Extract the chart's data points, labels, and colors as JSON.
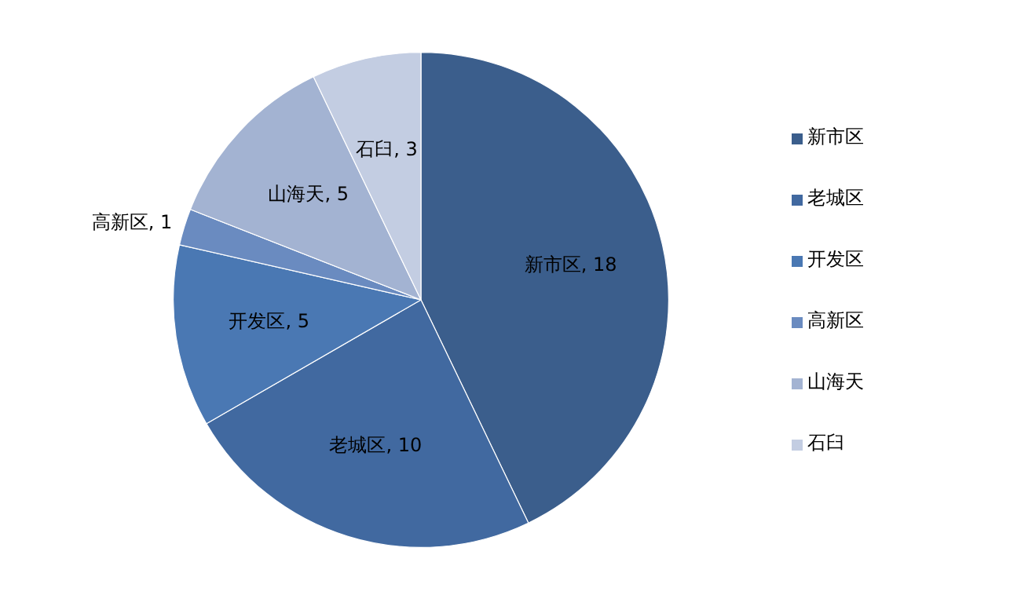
{
  "chart_data": {
    "type": "pie",
    "categories": [
      "新市区",
      "老城区",
      "开发区",
      "高新区",
      "山海天",
      "石臼"
    ],
    "values": [
      18,
      10,
      5,
      1,
      5,
      3
    ],
    "colors": [
      "#3b5e8c",
      "#4169a0",
      "#4a78b3",
      "#6a8bc0",
      "#a3b3d2",
      "#c3cde2"
    ],
    "value_labels": [
      "新市区, 18",
      "老城区, 10",
      "开发区, 5",
      "高新区, 1",
      "山海天, 5",
      "石臼, 3"
    ],
    "legend": "right"
  }
}
